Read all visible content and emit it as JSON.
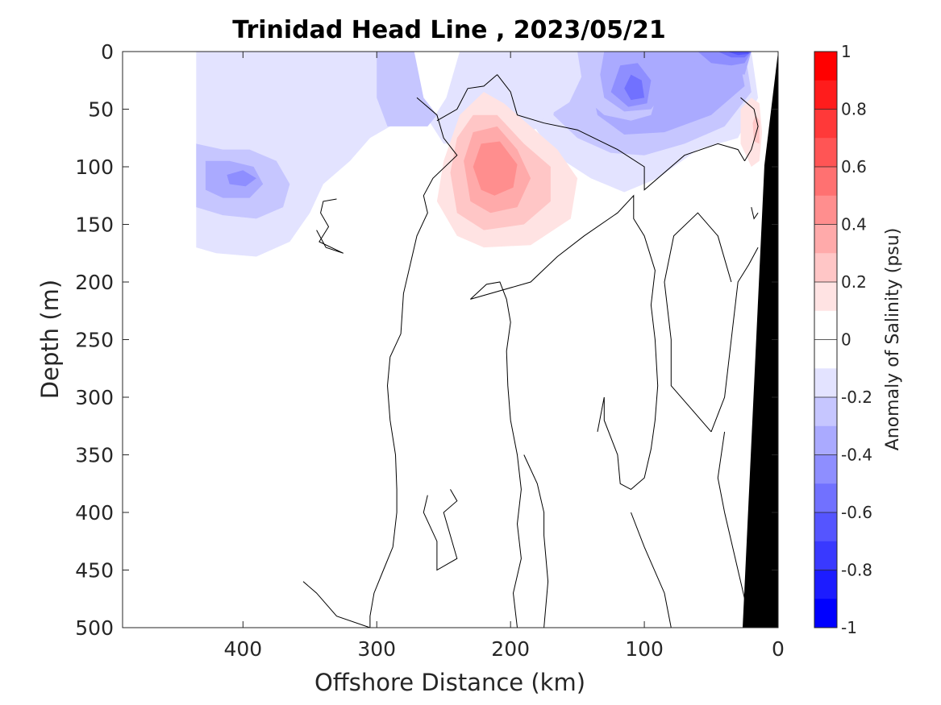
{
  "chart_data": {
    "type": "contour",
    "title": "Trinidad Head Line , 2023/05/21",
    "xlabel": "Offshore Distance (km)",
    "ylabel": "Depth (m)",
    "xlim": [
      490,
      0
    ],
    "ylim": [
      500,
      0
    ],
    "x_ticks": [
      "400",
      "300",
      "200",
      "100",
      "0"
    ],
    "y_ticks": [
      "0",
      "50",
      "100",
      "150",
      "200",
      "250",
      "300",
      "350",
      "400",
      "450",
      "500"
    ],
    "colorbar": {
      "label": "Anomaly of Salinity (psu)",
      "range": [
        -1,
        1
      ],
      "levels": 20,
      "ticks": [
        "1",
        "0.8",
        "0.6",
        "0.4",
        "0.2",
        "0",
        "-0.2",
        "-0.4",
        "-0.6",
        "-0.8",
        "-1"
      ],
      "colors": [
        "#ff0000",
        "#ff1c1c",
        "#ff3939",
        "#ff5555",
        "#ff7171",
        "#ff8e8e",
        "#ffaaaa",
        "#ffc6c6",
        "#ffe3e3",
        "#ffffff",
        "#ffffff",
        "#e3e3ff",
        "#c6c6ff",
        "#aaaaff",
        "#8e8eff",
        "#7171ff",
        "#5555ff",
        "#3939ff",
        "#1c1cff",
        "#0000ff"
      ]
    },
    "anomaly_cores": [
      {
        "x": 400,
        "depth": 110,
        "value": -0.5
      },
      {
        "x": 220,
        "depth": 100,
        "value": 0.5
      },
      {
        "x": 105,
        "depth": 40,
        "value": -0.5
      },
      {
        "x": 30,
        "depth": 5,
        "value": -0.8
      }
    ],
    "grid": false,
    "shelf_fill": "#000000"
  }
}
